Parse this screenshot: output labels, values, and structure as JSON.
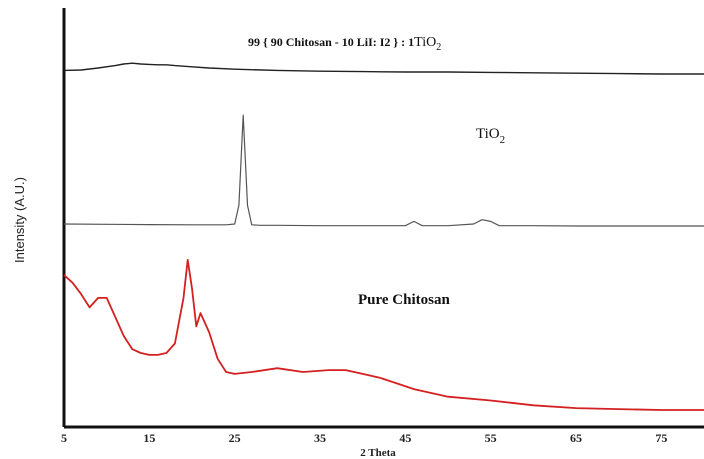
{
  "chart_data": {
    "type": "line",
    "xlabel": "2 Theta",
    "ylabel": "Intensity (A.U.)",
    "xlim": [
      5,
      80
    ],
    "xticks": [
      5,
      15,
      25,
      35,
      45,
      55,
      65,
      75
    ],
    "xtick_labels": [
      "5",
      "15",
      "25",
      "35",
      "45",
      "55",
      "65",
      "75"
    ],
    "annotations": [
      {
        "text_main": "99 { 90 Chitosan - 10 LiI: I2 } : 1",
        "text_sub_prefix": "TiO",
        "text_sub": "2"
      },
      {
        "text_main": "TiO",
        "text_sub": "2"
      },
      {
        "text_main": "Pure Chitosan"
      }
    ],
    "series": [
      {
        "color": "#222222",
        "x": [
          5,
          7,
          9,
          11,
          12,
          13,
          14,
          15,
          16,
          17,
          18,
          20,
          22,
          25,
          30,
          35,
          40,
          45,
          50,
          55,
          60,
          65,
          70,
          75,
          80
        ],
        "y": [
          0.36,
          0.365,
          0.39,
          0.42,
          0.44,
          0.45,
          0.44,
          0.435,
          0.43,
          0.43,
          0.42,
          0.405,
          0.39,
          0.375,
          0.36,
          0.35,
          0.345,
          0.34,
          0.34,
          0.335,
          0.33,
          0.325,
          0.32,
          0.315,
          0.315
        ]
      },
      {
        "color": "#555555",
        "x": [
          5,
          10,
          15,
          20,
          24,
          25,
          25.5,
          26,
          26.5,
          27,
          28,
          30,
          35,
          40,
          45,
          46,
          47,
          50,
          53,
          54,
          55,
          56,
          60,
          65,
          70,
          75,
          80
        ],
        "y": [
          0.04,
          0.038,
          0.036,
          0.035,
          0.035,
          0.04,
          0.15,
          0.68,
          0.15,
          0.035,
          0.032,
          0.032,
          0.03,
          0.03,
          0.03,
          0.055,
          0.03,
          0.03,
          0.04,
          0.065,
          0.055,
          0.03,
          0.03,
          0.028,
          0.028,
          0.028,
          0.028
        ]
      },
      {
        "color": "#d42020",
        "x": [
          5,
          6,
          7,
          8,
          9,
          10,
          11,
          12,
          13,
          14,
          15,
          16,
          17,
          18,
          19,
          19.5,
          20,
          20.5,
          21,
          22,
          23,
          24,
          25,
          27,
          30,
          33,
          36,
          38,
          40,
          42,
          44,
          46,
          50,
          55,
          60,
          65,
          70,
          75,
          80
        ],
        "y": [
          0.72,
          0.68,
          0.62,
          0.55,
          0.6,
          0.6,
          0.5,
          0.4,
          0.33,
          0.31,
          0.3,
          0.3,
          0.31,
          0.36,
          0.6,
          0.8,
          0.65,
          0.45,
          0.52,
          0.42,
          0.28,
          0.21,
          0.2,
          0.21,
          0.23,
          0.21,
          0.22,
          0.22,
          0.2,
          0.18,
          0.15,
          0.12,
          0.08,
          0.06,
          0.035,
          0.02,
          0.015,
          0.01,
          0.01
        ]
      }
    ]
  }
}
